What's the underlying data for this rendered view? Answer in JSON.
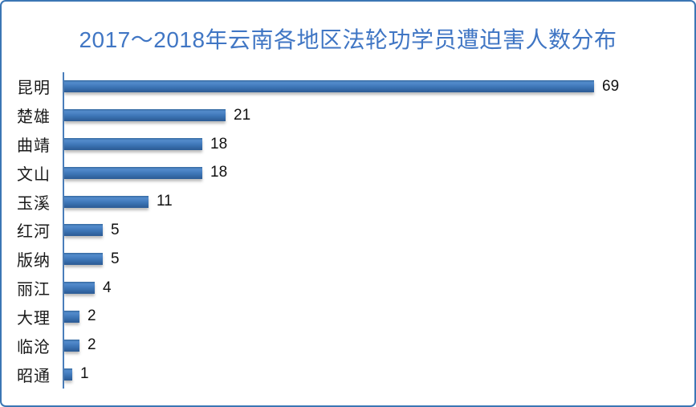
{
  "frame": {
    "border_color": "#3b76b4",
    "background": "#ffffff"
  },
  "title": {
    "text": "2017～2018年云南各地区法轮功学员遭迫害人数分布",
    "color": "#4076c4"
  },
  "chart_data": {
    "type": "bar",
    "orientation": "horizontal",
    "title": "2017～2018年云南各地区法轮功学员遭迫害人数分布",
    "categories": [
      "昆明",
      "楚雄",
      "曲靖",
      "文山",
      "玉溪",
      "红河",
      "版纳",
      "丽江",
      "大理",
      "临沧",
      "昭通"
    ],
    "values": [
      69,
      21,
      18,
      18,
      11,
      5,
      5,
      4,
      2,
      2,
      1
    ],
    "data_labels_shown": true,
    "xlabel": "",
    "ylabel": "",
    "xlim": [
      0,
      69
    ],
    "grid": false,
    "legend": "none",
    "bar_color": "#3d76b8",
    "bar_gradient_light": "#538bcb",
    "bar_gradient_dark": "#2c5c96",
    "axis_line_color": "#4a7ebb",
    "label_color": "#1a1a1a"
  }
}
